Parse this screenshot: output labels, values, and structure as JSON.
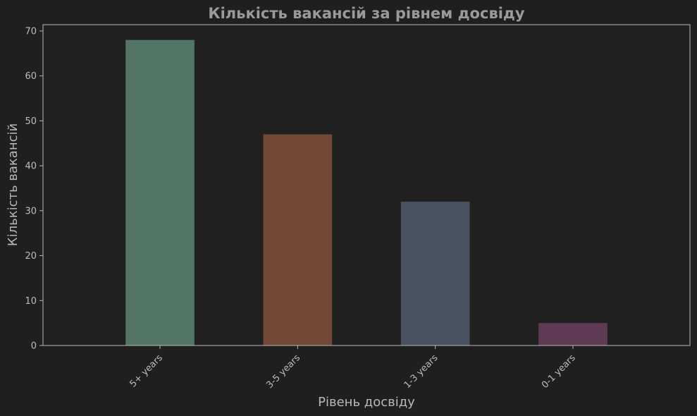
{
  "chart_data": {
    "type": "bar",
    "title": "Кількість вакансій за рівнем досвіду",
    "xlabel": "Рівень досвіду",
    "ylabel": "Кількість вакансій",
    "categories": [
      "5+ years",
      "3-5 years",
      "1-3 years",
      "0-1 years"
    ],
    "values": [
      68,
      47,
      32,
      5
    ],
    "bar_colors": [
      "#537566",
      "#704835",
      "#4a5160",
      "#5e3a55"
    ],
    "ylim": [
      0,
      71.4
    ],
    "yticks": [
      "0",
      "10",
      "20",
      "30",
      "40",
      "50",
      "60",
      "70"
    ],
    "grid": false,
    "legend": "none"
  },
  "theme": {
    "background": "#1f1f1f",
    "plot_background": "#202020",
    "spine": "#b8b8b8",
    "tick_text": "#bdbdbd",
    "title_text": "#9a9a9a",
    "label_text": "#b8b8b8"
  }
}
